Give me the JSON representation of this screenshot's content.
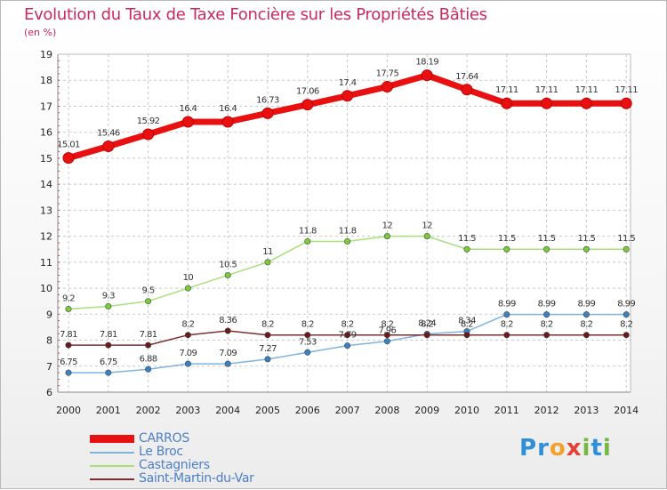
{
  "title": "Evolution du Taux de Taxe Foncière sur les Propriétés Bâties",
  "subtitle": "(en %)",
  "logo": {
    "letters": [
      "P",
      "r",
      "o",
      "x",
      "i",
      "t",
      "i"
    ],
    "colors": [
      "#2f8fd8",
      "#2f8fd8",
      "#f2a12b",
      "#e2413a",
      "#74b743",
      "#2f8fd8",
      "#74b743"
    ]
  },
  "colors": {
    "title": "#c72a63",
    "legend_text": "#4e7fc4",
    "grid": "#c8c8c8",
    "axis_tick": "#e03040"
  },
  "chart_data": {
    "type": "line",
    "title": "Evolution du Taux de Taxe Foncière sur les Propriétés Bâties",
    "ylabel": "(en %)",
    "x": [
      "2000",
      "2001",
      "2002",
      "2003",
      "2004",
      "2005",
      "2006",
      "2007",
      "2008",
      "2009",
      "2010",
      "2011",
      "2012",
      "2013",
      "2014"
    ],
    "y_ticks": [
      "6",
      "7",
      "8",
      "9",
      "10",
      "11",
      "12",
      "13",
      "14",
      "15",
      "16",
      "17",
      "18",
      "19"
    ],
    "ylim": [
      6,
      19
    ],
    "grid": true,
    "legend_position": "bottom-left",
    "series": [
      {
        "name": "CARROS",
        "color": "#e81010",
        "markerColor": "#e81010",
        "bold": true,
        "values": [
          15.01,
          15.46,
          15.92,
          16.4,
          16.4,
          16.73,
          17.06,
          17.4,
          17.75,
          18.19,
          17.64,
          17.11,
          17.11,
          17.11,
          17.11
        ],
        "labels": [
          "15.01",
          "15.46",
          "15.92",
          "16.4",
          "16.4",
          "16.73",
          "17.06",
          "17.4",
          "17.75",
          "18.19",
          "17.64",
          "17.11",
          "17.11",
          "17.11",
          "17.11"
        ]
      },
      {
        "name": "Le Broc",
        "color": "#7fb4e0",
        "markerColor": "#3b82c4",
        "bold": false,
        "values": [
          6.75,
          6.75,
          6.88,
          7.09,
          7.09,
          7.27,
          7.53,
          7.79,
          7.96,
          8.24,
          8.34,
          8.99,
          8.99,
          8.99,
          8.99
        ],
        "labels": [
          "6.75",
          "6.75",
          "6.88",
          "7.09",
          "7.09",
          "7.27",
          "7.53",
          "7.79",
          "7.96",
          "8.24",
          "8.34",
          "8.99",
          "8.99",
          "8.99",
          "8.99"
        ]
      },
      {
        "name": "Castagniers",
        "color": "#a8e07a",
        "markerColor": "#7acc3a",
        "bold": false,
        "values": [
          9.2,
          9.3,
          9.5,
          10,
          10.5,
          11,
          11.8,
          11.8,
          12,
          12,
          11.5,
          11.5,
          11.5,
          11.5,
          11.5
        ],
        "labels": [
          "9.2",
          "9.3",
          "9.5",
          "10",
          "10.5",
          "11",
          "11.8",
          "11.8",
          "12",
          "12",
          "11.5",
          "11.5",
          "11.5",
          "11.5",
          "11.5"
        ]
      },
      {
        "name": "Saint-Martin-du-Var",
        "color": "#7a3030",
        "markerColor": "#6a1a1a",
        "bold": false,
        "values": [
          7.81,
          7.81,
          7.81,
          8.2,
          8.36,
          8.2,
          8.2,
          8.2,
          8.2,
          8.2,
          8.2,
          8.2,
          8.2,
          8.2,
          8.2
        ],
        "labels": [
          "7.81",
          "7.81",
          "7.81",
          "8.2",
          "8.36",
          "8.2",
          "8.2",
          "8.2",
          "8.2",
          "8.2",
          "8.2",
          "8.2",
          "8.2",
          "8.2",
          "8.2"
        ]
      }
    ]
  }
}
